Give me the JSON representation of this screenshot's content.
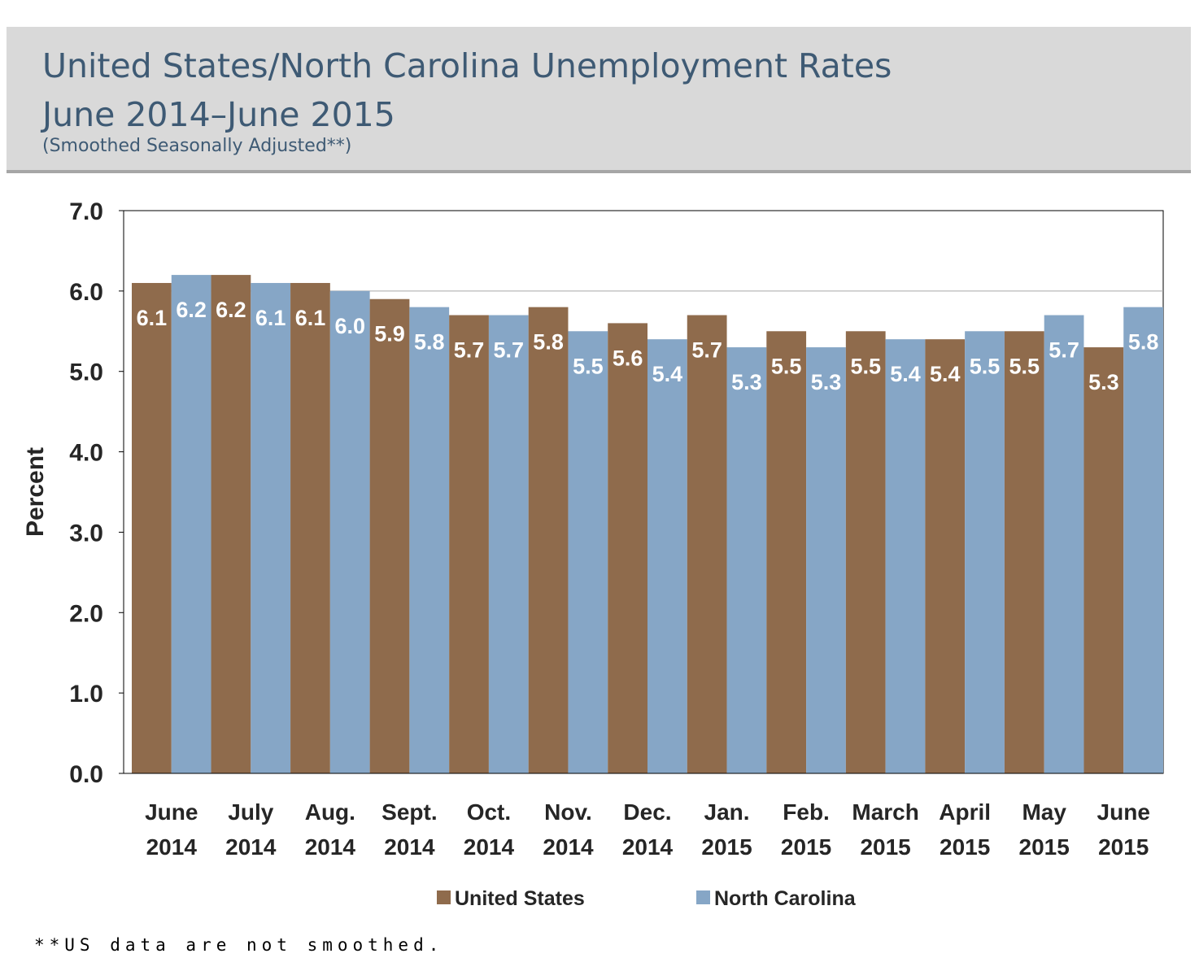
{
  "header": {
    "title_line1": "United States/North Carolina Unemployment Rates",
    "title_line2": "June 2014–June 2015",
    "subtitle": "(Smoothed Seasonally Adjusted**)"
  },
  "footnote": "**US data are not smoothed.",
  "colors": {
    "united_states": "#8f6b4c",
    "north_carolina": "#86a6c6",
    "header_bg": "#d9d9d9",
    "title": "#3e5a74"
  },
  "chart_data": {
    "type": "bar",
    "title": "United States/North Carolina Unemployment Rates June 2014–June 2015",
    "subtitle": "(Smoothed Seasonally Adjusted**)",
    "xlabel": "",
    "ylabel": "Percent",
    "ylim": [
      0,
      7
    ],
    "yticks": [
      "0.0",
      "1.0",
      "2.0",
      "3.0",
      "4.0",
      "5.0",
      "6.0",
      "7.0"
    ],
    "gridlines": [
      6.0
    ],
    "categories": [
      [
        "June",
        "2014"
      ],
      [
        "July",
        "2014"
      ],
      [
        "Aug.",
        "2014"
      ],
      [
        "Sept.",
        "2014"
      ],
      [
        "Oct.",
        "2014"
      ],
      [
        "Nov.",
        "2014"
      ],
      [
        "Dec.",
        "2014"
      ],
      [
        "Jan.",
        "2015"
      ],
      [
        "Feb.",
        "2015"
      ],
      [
        "March",
        "2015"
      ],
      [
        "April",
        "2015"
      ],
      [
        "May",
        "2015"
      ],
      [
        "June",
        "2015"
      ]
    ],
    "series": [
      {
        "name": "United States",
        "values": [
          6.1,
          6.2,
          6.1,
          5.9,
          5.7,
          5.8,
          5.6,
          5.7,
          5.5,
          5.5,
          5.4,
          5.5,
          5.3
        ]
      },
      {
        "name": "North Carolina",
        "values": [
          6.2,
          6.1,
          6.0,
          5.8,
          5.7,
          5.5,
          5.4,
          5.3,
          5.3,
          5.4,
          5.5,
          5.7,
          5.8
        ]
      }
    ],
    "legend": "bottom"
  }
}
